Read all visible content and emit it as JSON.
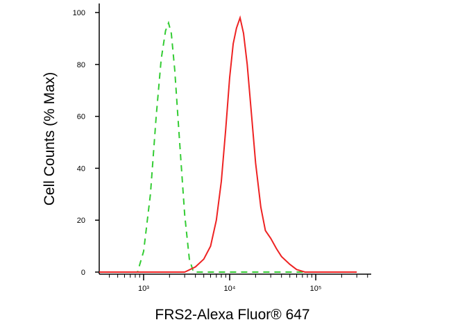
{
  "chart_data": {
    "type": "line",
    "xlabel": "FRS2-Alexa Fluor® 647",
    "ylabel": "Cell Counts (% Max)",
    "xscale": "log",
    "xlim": [
      305,
      441000
    ],
    "ylim": [
      -0.8,
      103.5
    ],
    "xticks": [
      {
        "value": 1000,
        "label": "10³"
      },
      {
        "value": 10000,
        "label": "10⁴"
      },
      {
        "value": 100000,
        "label": "10⁵"
      }
    ],
    "xminor_ticks": [
      400,
      500,
      600,
      700,
      800,
      900,
      2000,
      3000,
      4000,
      5000,
      6000,
      7000,
      8000,
      9000,
      20000,
      30000,
      40000,
      50000,
      60000,
      70000,
      80000,
      90000,
      200000,
      300000,
      400000
    ],
    "yticks": [
      0,
      20,
      40,
      60,
      80,
      100
    ],
    "series": [
      {
        "color": "#33cc33",
        "dashed": true,
        "x": [
          305,
          850,
          1000,
          1200,
          1400,
          1600,
          1800,
          1950,
          2100,
          2300,
          2600,
          3000,
          3400,
          3800,
          120000
        ],
        "values": [
          0,
          0,
          8,
          30,
          60,
          82,
          93,
          96,
          92,
          78,
          52,
          22,
          5,
          0,
          0
        ]
      },
      {
        "color": "#ee2222",
        "dashed": false,
        "x": [
          305,
          2000,
          3000,
          4000,
          5000,
          6000,
          7000,
          8000,
          9000,
          10000,
          11000,
          12000,
          13200,
          14500,
          16000,
          18000,
          20000,
          23000,
          26000,
          30000,
          35000,
          40000,
          50000,
          60000,
          75000,
          300000
        ],
        "values": [
          0,
          0,
          0,
          2,
          5,
          10,
          20,
          35,
          55,
          75,
          88,
          94,
          98,
          92,
          80,
          60,
          42,
          25,
          16,
          13,
          9,
          6,
          3,
          1,
          0,
          0
        ]
      }
    ]
  }
}
